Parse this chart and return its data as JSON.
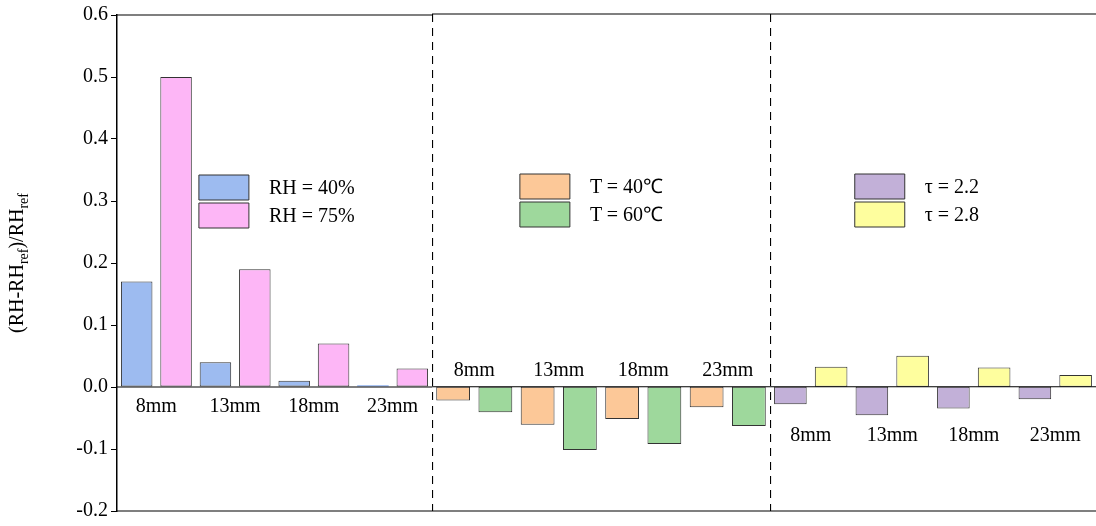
{
  "chart_data": [
    {
      "type": "bar",
      "ylabel": "(RH-RH$_{ref}$)/RH$_{ref}$",
      "categories": [
        "8mm",
        "13mm",
        "18mm",
        "23mm"
      ],
      "series": [
        {
          "name": "RH = 40%",
          "color": "#9dbbf0",
          "values": [
            0.17,
            0.04,
            0.01,
            0.003
          ]
        },
        {
          "name": "RH = 75%",
          "color": "#fdb6f6",
          "values": [
            0.5,
            0.19,
            0.07,
            0.03
          ]
        }
      ],
      "ylim": [
        -0.2,
        0.6
      ],
      "yticks": [
        -0.2,
        -0.1,
        {
          "value": 0,
          "label": "0.0"
        },
        0.1,
        0.2,
        0.3,
        0.4,
        0.5,
        0.6
      ],
      "legend": "top"
    },
    {
      "type": "bar",
      "categories": [
        "8mm",
        "13mm",
        "18mm",
        "23mm"
      ],
      "series": [
        {
          "name": "T = 40℃",
          "color": "#fcc898",
          "values": [
            -0.022,
            -0.061,
            -0.052,
            -0.033
          ]
        },
        {
          "name": "T = 60℃",
          "color": "#9ed89c",
          "values": [
            -0.041,
            -0.102,
            -0.092,
            -0.063
          ]
        }
      ],
      "ylim": [
        -0.2,
        0.6
      ],
      "tick_labels": "x",
      "legend": "top"
    },
    {
      "type": "bar",
      "categories": [
        "8mm",
        "13mm",
        "18mm",
        "23mm"
      ],
      "series": [
        {
          "name": "τ = 2.2",
          "color": "#c2b0d8",
          "values": [
            -0.028,
            -0.046,
            -0.035,
            -0.02
          ]
        },
        {
          "name": "τ = 2.8",
          "color": "#fefe9e",
          "values": [
            0.032,
            0.05,
            0.031,
            0.019
          ]
        }
      ],
      "ylim": [
        -0.2,
        0.6
      ],
      "tick_labels": "x",
      "legend": "top"
    }
  ]
}
